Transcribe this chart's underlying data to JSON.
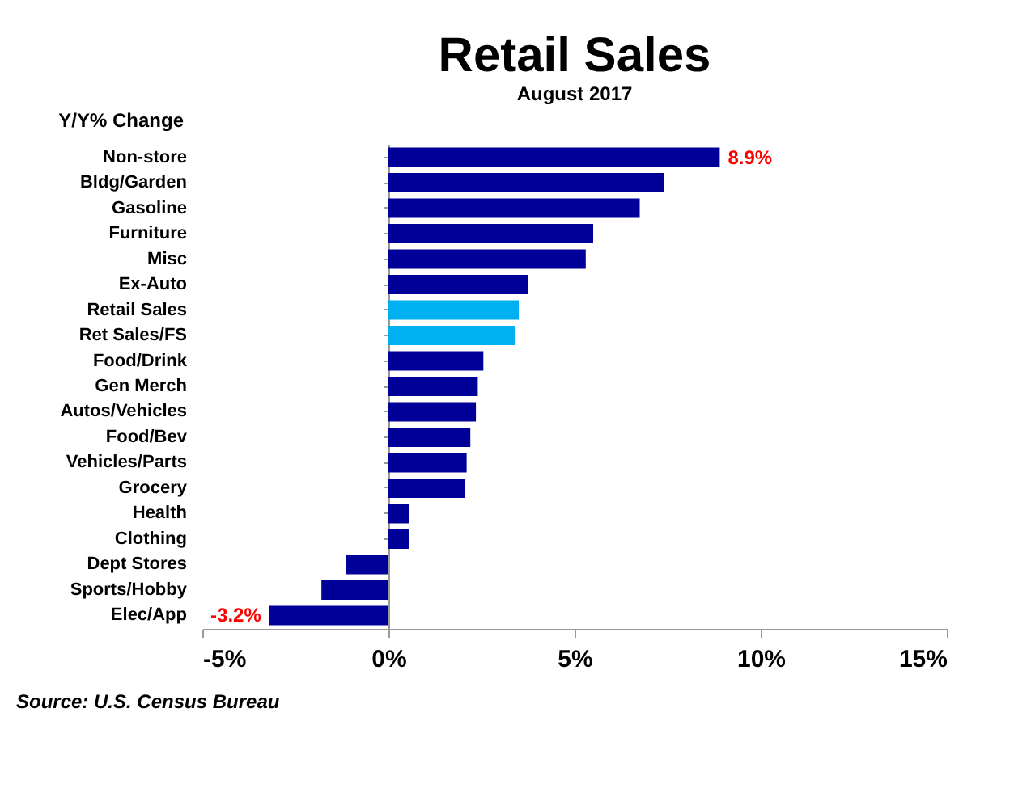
{
  "chart_data": {
    "type": "bar",
    "orientation": "horizontal",
    "title": "Retail Sales",
    "subtitle": "August 2017",
    "ylabel": "Y/Y% Change",
    "categories": [
      "Non-store",
      "Bldg/Garden",
      "Gasoline",
      "Furniture",
      "Misc",
      "Ex-Auto",
      "Retail Sales",
      "Ret Sales/FS",
      "Food/Drink",
      "Gen Merch",
      "Autos/Vehicles",
      "Food/Bev",
      "Vehicles/Parts",
      "Grocery",
      "Health",
      "Clothing",
      "Dept Stores",
      "Sports/Hobby",
      "Elec/App"
    ],
    "values": [
      8.9,
      7.4,
      6.75,
      5.5,
      5.3,
      3.75,
      3.5,
      3.4,
      2.55,
      2.4,
      2.35,
      2.2,
      2.1,
      2.05,
      0.55,
      0.55,
      -1.15,
      -1.8,
      -3.2
    ],
    "colors": [
      "#000099",
      "#000099",
      "#000099",
      "#000099",
      "#000099",
      "#000099",
      "#00b0f0",
      "#00b0f0",
      "#000099",
      "#000099",
      "#000099",
      "#000099",
      "#000099",
      "#000099",
      "#000099",
      "#000099",
      "#000099",
      "#000099",
      "#000099"
    ],
    "value_labels": [
      "8.9%",
      null,
      null,
      null,
      null,
      null,
      null,
      null,
      null,
      null,
      null,
      null,
      null,
      null,
      null,
      null,
      null,
      null,
      "-3.2%"
    ],
    "xlim": [
      -5,
      15
    ],
    "xticks": [
      {
        "value": -5,
        "label": "-5%"
      },
      {
        "value": 0,
        "label": "0%"
      },
      {
        "value": 5,
        "label": "5%"
      },
      {
        "value": 10,
        "label": "10%"
      },
      {
        "value": 15,
        "label": "15%"
      }
    ],
    "annotations": [
      "Source: U.S. Census Bureau"
    ]
  }
}
